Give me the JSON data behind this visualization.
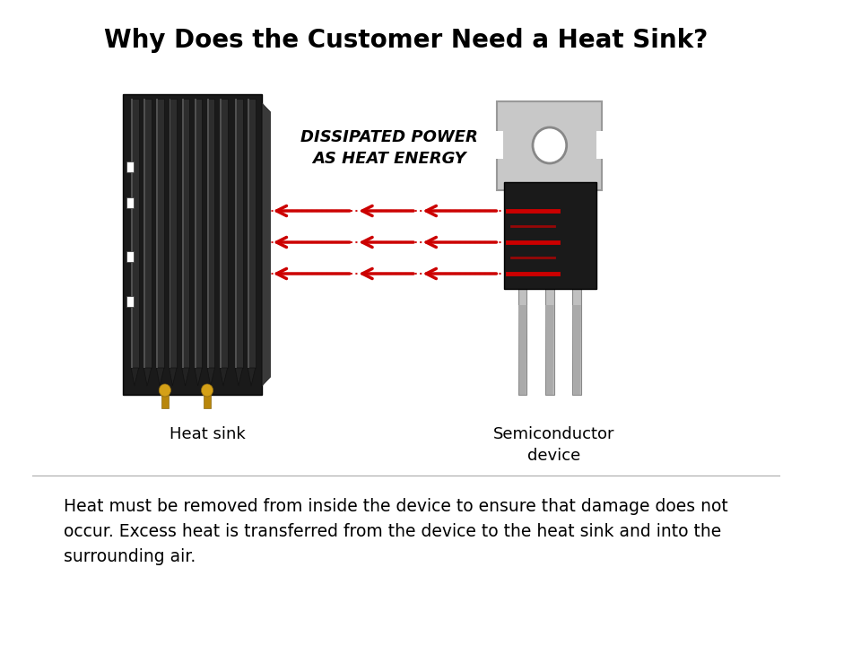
{
  "title": "Why Does the Customer Need a Heat Sink?",
  "title_fontsize": 20,
  "label_heatsink": "Heat sink",
  "label_semiconductor": "Semiconductor\ndevice",
  "label_dissipated": "DISSIPATED POWER\nAS HEAT ENERGY",
  "body_text": "Heat must be removed from inside the device to ensure that damage does not\noccur. Excess heat is transferred from the device to the heat sink and into the\nsurrounding air.",
  "bg_color": "#ffffff",
  "arrow_color": "#cc0000",
  "dot_color": "#cc0000",
  "label_color": "#000000",
  "body_fontsize": 13.5
}
